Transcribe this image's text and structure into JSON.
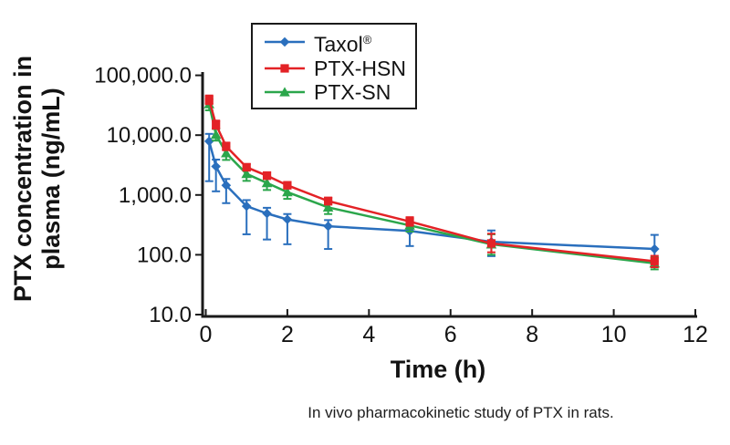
{
  "figure": {
    "caption": "In vivo pharmacokinetic study of PTX in rats."
  },
  "legend": {
    "items": [
      {
        "label": "Taxol",
        "sup": "®"
      },
      {
        "label": "PTX-HSN"
      },
      {
        "label": "PTX-SN"
      }
    ]
  },
  "chart_data": {
    "type": "line",
    "title": "",
    "xlabel": "Time (h)",
    "ylabel_line1": "PTX concentration in",
    "ylabel_line2": "plasma (ng/mL)",
    "y_scale": "log",
    "xlim": [
      0,
      12
    ],
    "ylim": [
      10,
      100000
    ],
    "grid": false,
    "legend_position": "top-center",
    "x_ticks": [
      {
        "value": 0,
        "label": "0"
      },
      {
        "value": 2,
        "label": "2"
      },
      {
        "value": 4,
        "label": "4"
      },
      {
        "value": 6,
        "label": "6"
      },
      {
        "value": 8,
        "label": "8"
      },
      {
        "value": 10,
        "label": "10"
      },
      {
        "value": 12,
        "label": "12"
      }
    ],
    "y_ticks": [
      {
        "value": 100000,
        "label": "100,000.0"
      },
      {
        "value": 10000,
        "label": "10,000.0"
      },
      {
        "value": 1000,
        "label": "1,000.0"
      },
      {
        "value": 100,
        "label": "100.0"
      },
      {
        "value": 10,
        "label": "10.0"
      }
    ],
    "x": [
      0.083,
      0.25,
      0.5,
      1,
      1.5,
      2,
      3,
      5,
      7,
      11
    ],
    "series": [
      {
        "name": "Taxol®",
        "color": "#2A6FBD",
        "marker": "diamond",
        "values": [
          7900,
          3000,
          1450,
          650,
          490,
          390,
          300,
          250,
          165,
          125
        ],
        "err_lo": [
          1700,
          1150,
          730,
          220,
          180,
          150,
          125,
          140,
          95,
          78
        ],
        "err_hi": [
          10500,
          3900,
          1850,
          820,
          610,
          480,
          380,
          330,
          255,
          215
        ]
      },
      {
        "name": "PTX-HSN",
        "color": "#E32226",
        "marker": "square",
        "values": [
          39000,
          15000,
          6500,
          2900,
          2100,
          1450,
          790,
          360,
          155,
          78
        ],
        "err_lo": [
          33000,
          12800,
          5600,
          2550,
          1850,
          1280,
          690,
          305,
          110,
          62
        ],
        "err_hi": [
          46000,
          17500,
          7500,
          3300,
          2400,
          1650,
          905,
          425,
          225,
          96
        ]
      },
      {
        "name": "PTX-SN",
        "color": "#2BA64B",
        "marker": "triangle",
        "values": [
          33000,
          10200,
          5000,
          2250,
          1590,
          1115,
          620,
          310,
          150,
          72
        ],
        "err_lo": [
          26000,
          8100,
          3850,
          1720,
          1210,
          860,
          480,
          245,
          100,
          57
        ],
        "err_hi": [
          40000,
          12700,
          6300,
          2850,
          2050,
          1420,
          795,
          395,
          220,
          90
        ]
      }
    ]
  }
}
